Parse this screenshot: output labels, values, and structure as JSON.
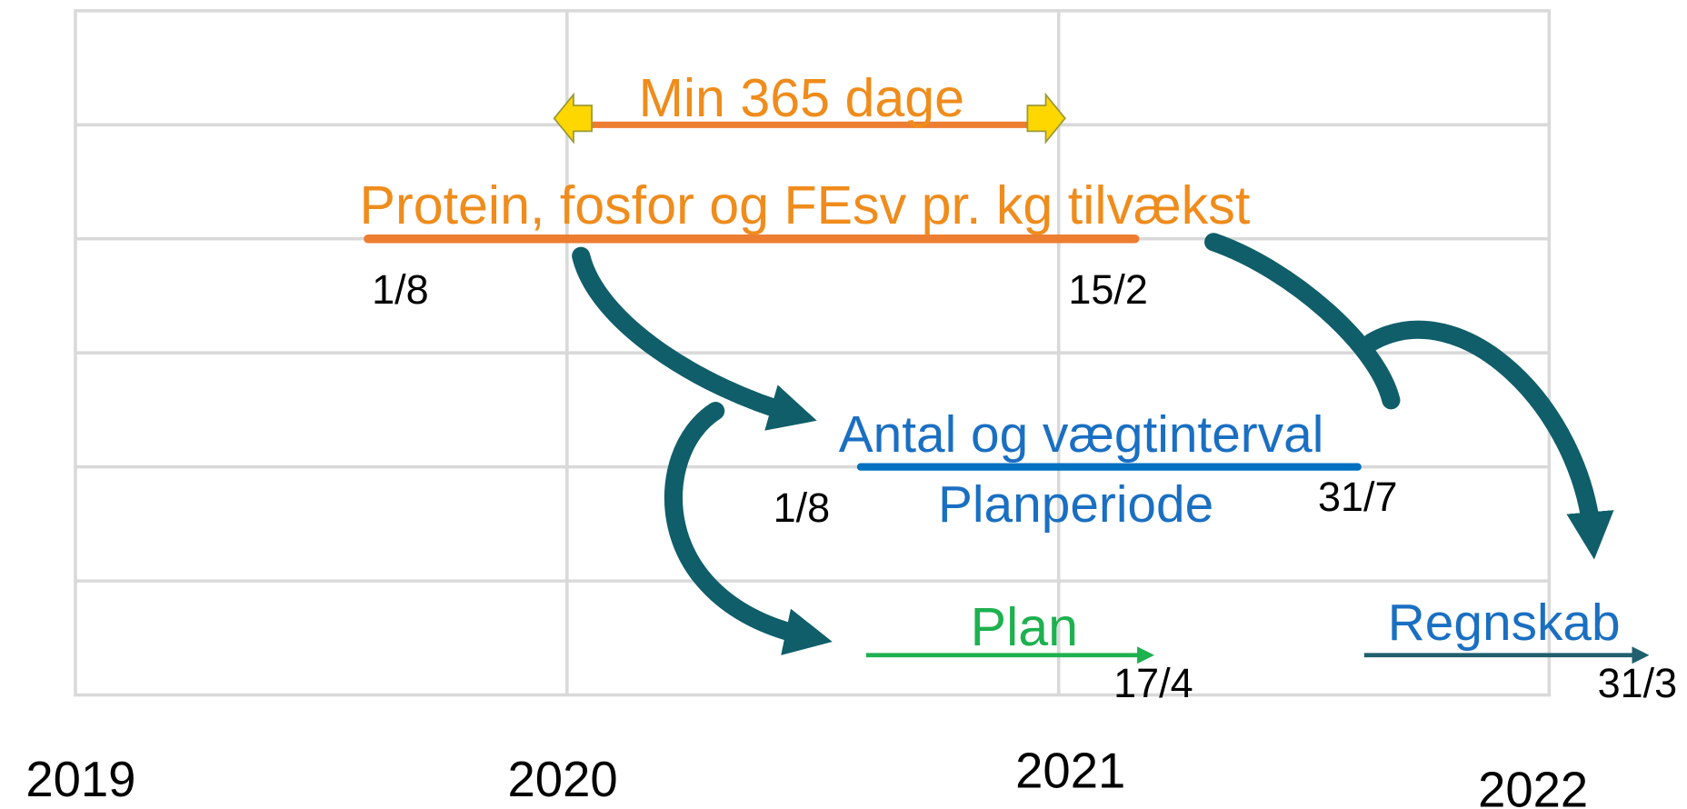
{
  "timeline": {
    "min_period": {
      "label": "Min 365 dage"
    },
    "feed_period": {
      "label": "Protein, fosfor og FEsv pr. kg tilvækst",
      "start": "1/8",
      "end": "15/2"
    },
    "plan_period": {
      "label": "Antal og vægtinterval",
      "sublabel": "Planperiode",
      "start": "1/8",
      "end": "31/7"
    },
    "plan": {
      "label": "Plan",
      "end": "17/4"
    },
    "accounts": {
      "label": "Regnskab",
      "end": "31/3"
    },
    "years": [
      "2019",
      "2020",
      "2021",
      "2022"
    ]
  }
}
